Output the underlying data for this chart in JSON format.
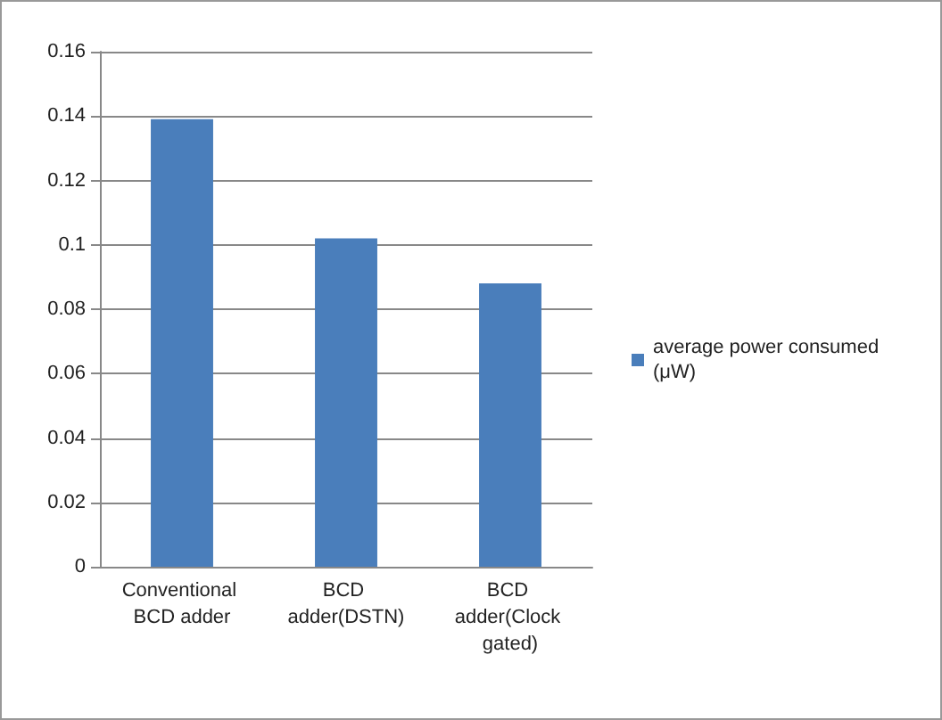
{
  "chart_data": {
    "type": "bar",
    "categories": [
      "Conventional BCD adder",
      "BCD adder(DSTN)",
      "BCD adder(Clock gated)"
    ],
    "series": [
      {
        "name": "average power consumed (μW)",
        "color": "#4a7ebb",
        "values": [
          0.139,
          0.102,
          0.088
        ]
      }
    ],
    "ylim": [
      0,
      0.16
    ],
    "yticks": [
      0,
      0.02,
      0.04,
      0.06,
      0.08,
      0.1,
      0.12,
      0.14,
      0.16
    ],
    "grid": "y",
    "legend": "right"
  }
}
